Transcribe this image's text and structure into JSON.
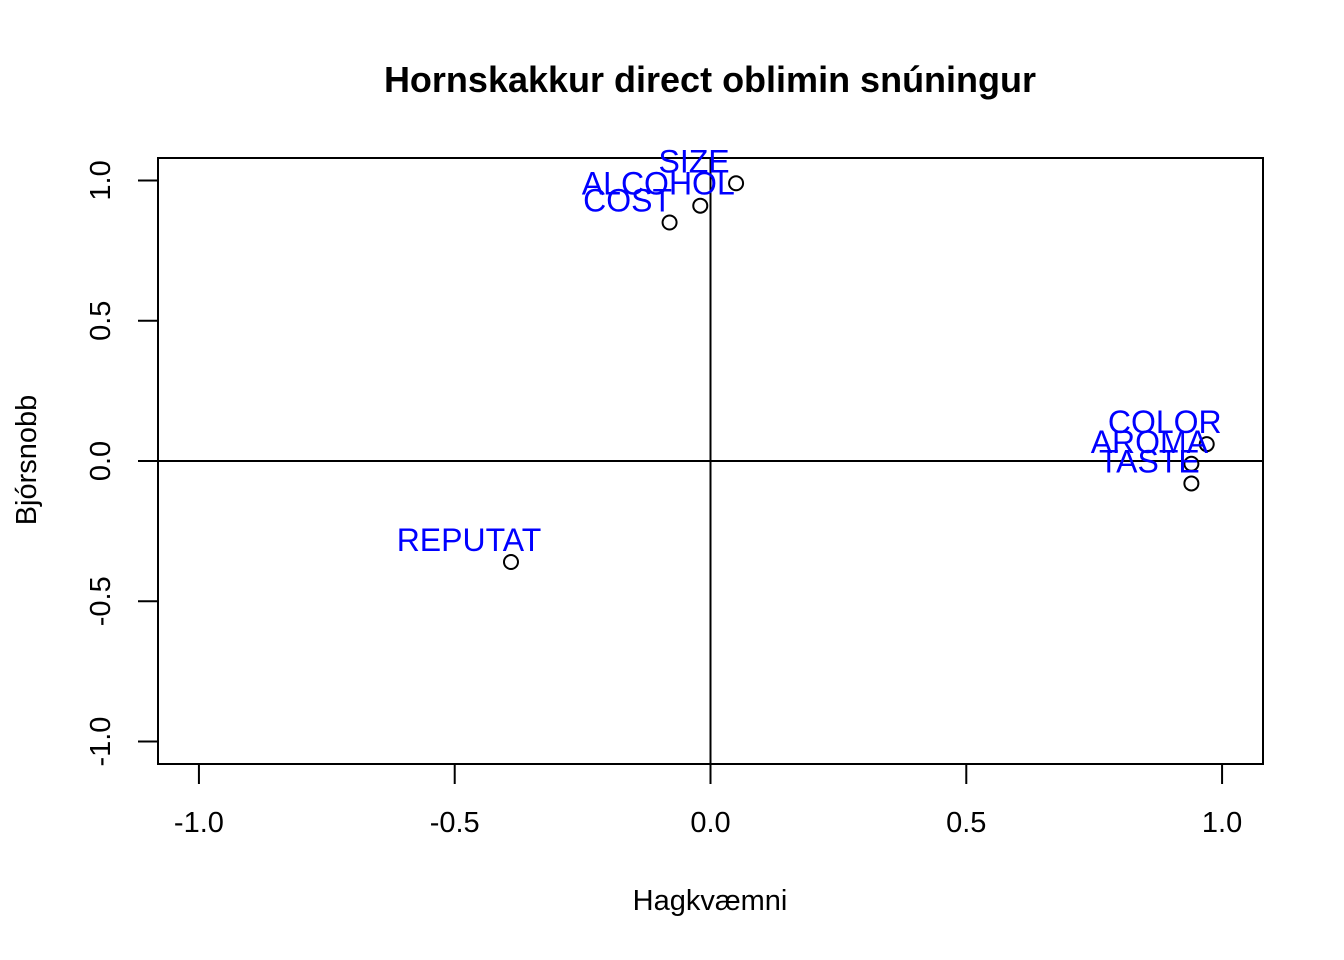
{
  "chart_data": {
    "type": "scatter",
    "title": "Hornskakkur direct oblimin snúningur",
    "xlabel": "Hagkvæmni",
    "ylabel": "Bjórsnobb",
    "xlim": [
      -1.08,
      1.08
    ],
    "ylim": [
      -1.08,
      1.08
    ],
    "x_ticks": [
      -1.0,
      -0.5,
      0.0,
      0.5,
      1.0
    ],
    "x_tick_labels": [
      "-1.0",
      "-0.5",
      "0.0",
      "0.5",
      "1.0"
    ],
    "y_ticks": [
      -1.0,
      -0.5,
      0.0,
      0.5,
      1.0
    ],
    "y_tick_labels": [
      "-1.0",
      "-0.5",
      "0.0",
      "0.5",
      "1.0"
    ],
    "reference_lines": {
      "h": 0,
      "v": 0
    },
    "label_color": "#0000ff",
    "points": [
      {
        "label": "COST",
        "x": -0.08,
        "y": 0.85
      },
      {
        "label": "SIZE",
        "x": 0.05,
        "y": 0.99
      },
      {
        "label": "ALCOHOL",
        "x": -0.02,
        "y": 0.91
      },
      {
        "label": "REPUTAT",
        "x": -0.39,
        "y": -0.36
      },
      {
        "label": "COLOR",
        "x": 0.97,
        "y": 0.06
      },
      {
        "label": "AROMA",
        "x": 0.94,
        "y": -0.01
      },
      {
        "label": "TASTE",
        "x": 0.94,
        "y": -0.08
      }
    ]
  }
}
